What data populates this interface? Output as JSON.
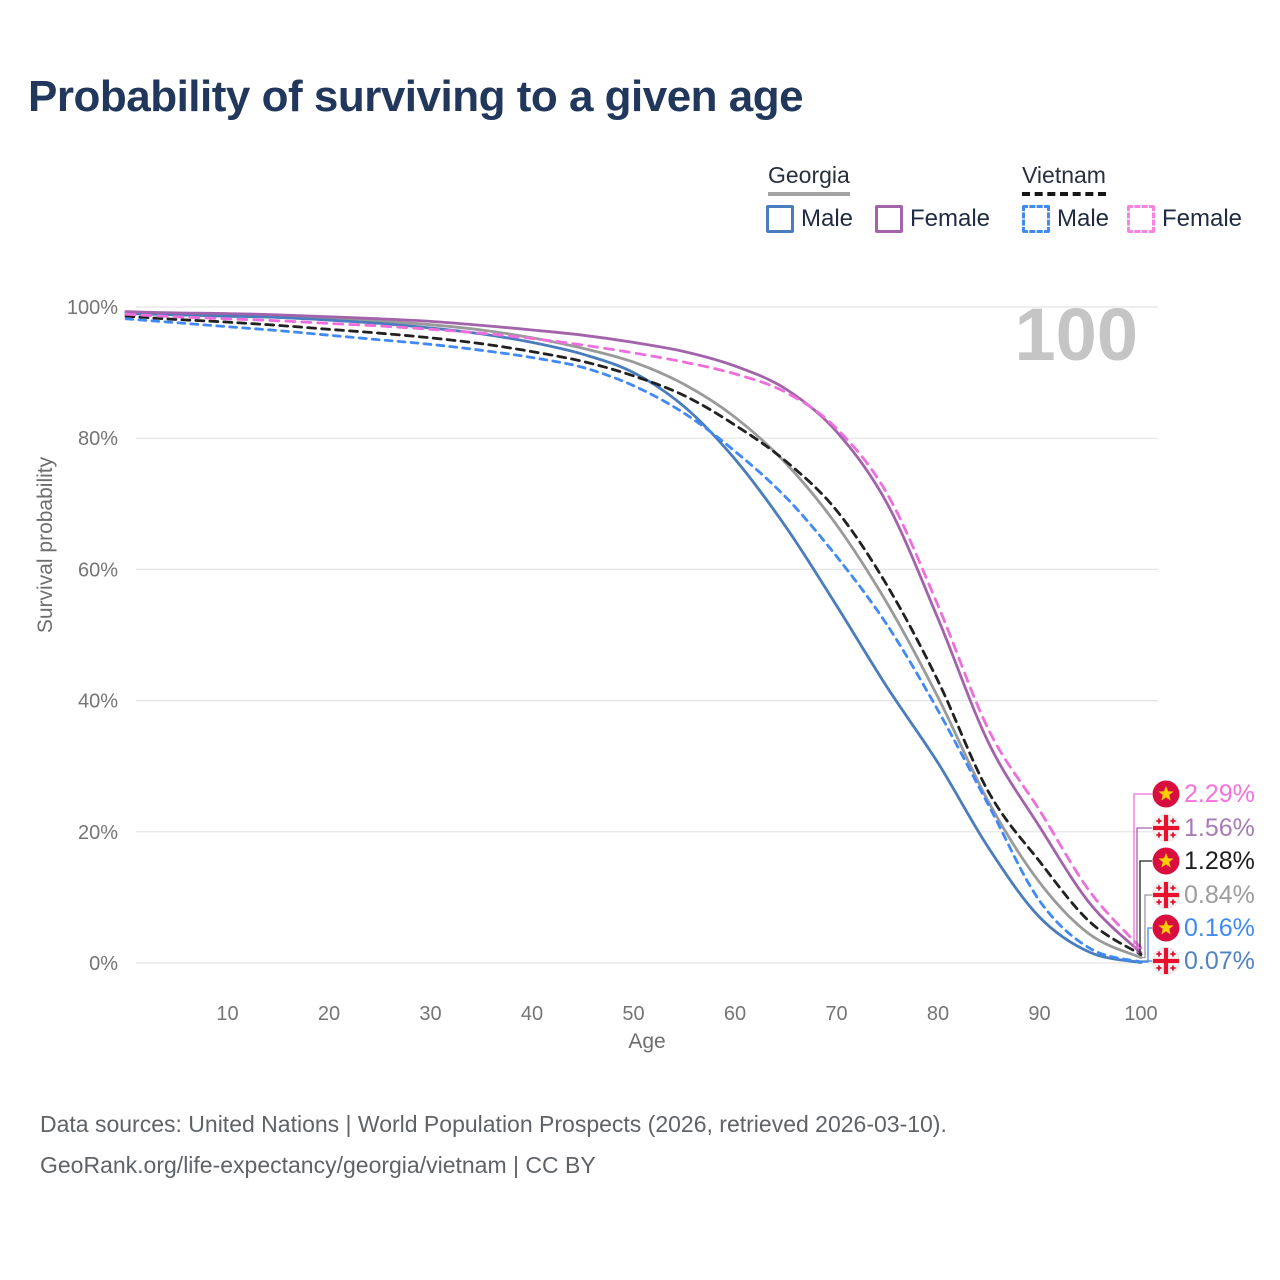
{
  "page": {
    "title": "Probability of surviving to a given age",
    "watermark": "100",
    "footer_line1": "Data sources: United Nations | World Population Prospects (2026, retrieved 2026-03-10).",
    "footer_line2": "GeoRank.org/life-expectancy/georgia/vietnam | CC BY"
  },
  "legend": {
    "groups": [
      {
        "id": "georgia",
        "label": "Georgia",
        "line_style": "solid",
        "line_color": "#a3a3a3",
        "items": [
          {
            "id": "georgia-male",
            "label": "Male",
            "color": "#4a7dbd",
            "style": "solid"
          },
          {
            "id": "georgia-female",
            "label": "Female",
            "color": "#a263aa",
            "style": "solid"
          }
        ]
      },
      {
        "id": "vietnam",
        "label": "Vietnam",
        "line_style": "dashed",
        "line_color": "#161616",
        "items": [
          {
            "id": "vietnam-male",
            "label": "Male",
            "color": "#4189f4",
            "style": "dashed"
          },
          {
            "id": "vietnam-female",
            "label": "Female",
            "color": "#f984e0",
            "style": "dashed"
          }
        ]
      }
    ]
  },
  "chart_data": {
    "type": "line",
    "title": "Probability of surviving to a given age",
    "xlabel": "Age",
    "ylabel": "Survival probability",
    "xlim": [
      0,
      100
    ],
    "ylim": [
      0,
      100
    ],
    "grid": "horizontal",
    "highlighted_age": "100",
    "x_ticks": [
      10,
      20,
      30,
      40,
      50,
      60,
      70,
      80,
      90,
      100
    ],
    "y_ticks": [
      {
        "value": 100,
        "label": "100%"
      },
      {
        "value": 80,
        "label": "80%"
      },
      {
        "value": 60,
        "label": "60%"
      },
      {
        "value": 40,
        "label": "40%"
      },
      {
        "value": 20,
        "label": "20%"
      },
      {
        "value": 0,
        "label": "0%"
      }
    ],
    "x": [
      0,
      5,
      10,
      15,
      20,
      25,
      30,
      35,
      40,
      45,
      50,
      55,
      60,
      65,
      70,
      75,
      80,
      85,
      90,
      95,
      100
    ],
    "series": [
      {
        "id": "georgia",
        "name": "Georgia (both sexes)",
        "country": "Georgia",
        "sex": "both",
        "color": "#9a9a9a",
        "dash": "",
        "flag": "georgia",
        "end_label": "0.84%",
        "label_color": "#9d9d9d",
        "values": [
          99.1,
          98.9,
          98.75,
          98.55,
          98.25,
          97.85,
          97.3,
          96.5,
          95.3,
          93.7,
          91.6,
          88.2,
          83.2,
          76.2,
          66.8,
          54.8,
          40.5,
          24.5,
          12.3,
          4.3,
          0.84
        ]
      },
      {
        "id": "georgia-male",
        "name": "Georgia male",
        "country": "Georgia",
        "sex": "male",
        "color": "#4a7dbd",
        "dash": "",
        "flag": "georgia",
        "end_label": "0.07%",
        "label_color": "#5183c2",
        "values": [
          99.0,
          98.8,
          98.6,
          98.4,
          98.0,
          97.5,
          96.8,
          95.9,
          94.6,
          92.8,
          90.0,
          84.8,
          76.8,
          66.5,
          54.5,
          42.0,
          30.5,
          17.5,
          7.0,
          1.6,
          0.07
        ]
      },
      {
        "id": "georgia-female",
        "name": "Georgia female",
        "country": "Georgia",
        "sex": "female",
        "color": "#a263aa",
        "dash": "",
        "flag": "georgia",
        "end_label": "1.56%",
        "label_color": "#a97ab5",
        "values": [
          99.3,
          99.1,
          99.0,
          98.8,
          98.5,
          98.2,
          97.8,
          97.2,
          96.5,
          95.7,
          94.6,
          93.2,
          91.0,
          87.5,
          81.0,
          70.0,
          52.5,
          33.5,
          20.8,
          9.0,
          1.56
        ]
      },
      {
        "id": "vietnam",
        "name": "Vietnam (both sexes)",
        "country": "Vietnam",
        "sex": "both",
        "color": "#212121",
        "dash": "8 6",
        "flag": "vietnam",
        "end_label": "1.28%",
        "label_color": "#1d1d1d",
        "values": [
          98.6,
          98.1,
          97.7,
          97.2,
          96.6,
          96.0,
          95.3,
          94.4,
          93.2,
          91.7,
          89.5,
          86.5,
          82.0,
          76.5,
          69.0,
          57.5,
          43.0,
          26.0,
          15.5,
          6.2,
          1.28
        ]
      },
      {
        "id": "vietnam-male",
        "name": "Vietnam male",
        "country": "Vietnam",
        "sex": "male",
        "color": "#4189f4",
        "dash": "7 6",
        "flag": "vietnam",
        "end_label": "0.16%",
        "label_color": "#4089f2",
        "values": [
          98.2,
          97.6,
          97.0,
          96.4,
          95.7,
          95.0,
          94.3,
          93.4,
          92.3,
          90.8,
          88.0,
          83.8,
          78.0,
          71.0,
          62.0,
          51.5,
          38.5,
          24.0,
          9.5,
          2.2,
          0.16
        ]
      },
      {
        "id": "vietnam-female",
        "name": "Vietnam female",
        "country": "Vietnam",
        "sex": "female",
        "color": "#ee6edb",
        "dash": "9 7",
        "flag": "vietnam",
        "end_label": "2.29%",
        "label_color": "#f670de",
        "values": [
          98.9,
          98.5,
          98.2,
          97.9,
          97.5,
          97.1,
          96.6,
          96.0,
          95.2,
          94.2,
          93.0,
          91.6,
          89.8,
          87.0,
          81.5,
          71.5,
          54.5,
          35.5,
          23.3,
          10.8,
          2.29
        ]
      }
    ]
  }
}
